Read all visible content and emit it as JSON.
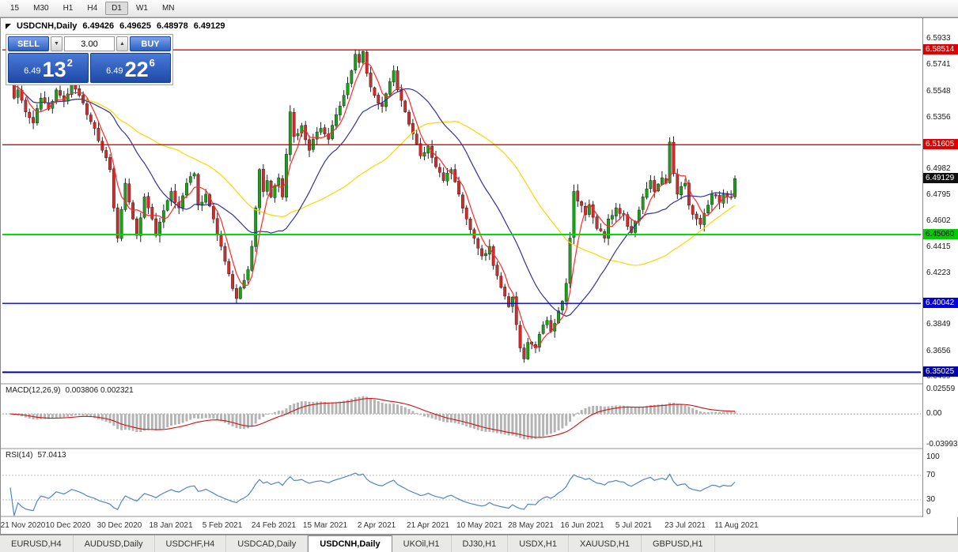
{
  "toolbar": {
    "timeframes": [
      {
        "label": "15",
        "active": false
      },
      {
        "label": "M30",
        "active": false
      },
      {
        "label": "H1",
        "active": false
      },
      {
        "label": "H4",
        "active": false
      },
      {
        "label": "D1",
        "active": true
      },
      {
        "label": "W1",
        "active": false
      },
      {
        "label": "MN",
        "active": false
      }
    ]
  },
  "chart": {
    "symbol_title": "USDCNH,Daily",
    "open": "6.49426",
    "high": "6.49625",
    "low": "6.48978",
    "close": "6.49129"
  },
  "trade_panel": {
    "sell_label": "SELL",
    "buy_label": "BUY",
    "volume": "3.00",
    "volume_down_glyph": "▼",
    "volume_up_glyph": "▲",
    "sell": {
      "base": "6.49",
      "pips": "13",
      "frac": "2"
    },
    "buy": {
      "base": "6.49",
      "pips": "22",
      "frac": "6"
    }
  },
  "price_axis": {
    "labels": [
      {
        "text": "6.5933",
        "price": 6.5933
      },
      {
        "text": "6.5741",
        "price": 6.5741
      },
      {
        "text": "6.5548",
        "price": 6.5548
      },
      {
        "text": "6.5356",
        "price": 6.5356
      },
      {
        "text": "6.4982",
        "price": 6.4982
      },
      {
        "text": "6.4795",
        "price": 6.4795
      },
      {
        "text": "6.4602",
        "price": 6.4602
      },
      {
        "text": "6.4415",
        "price": 6.4415
      },
      {
        "text": "6.4223",
        "price": 6.4223
      },
      {
        "text": "6.3849",
        "price": 6.3849
      },
      {
        "text": "6.3656",
        "price": 6.3656
      },
      {
        "text": "6.3469",
        "price": 6.3469
      }
    ],
    "badges": [
      {
        "text": "6.58514",
        "price": 6.58514,
        "bg": "#e00000",
        "fg": "#ffffff"
      },
      {
        "text": "6.51605",
        "price": 6.51605,
        "bg": "#e00000",
        "fg": "#ffffff"
      },
      {
        "text": "6.49129",
        "price": 6.49129,
        "bg": "#101010",
        "fg": "#ffffff"
      },
      {
        "text": "6.45060",
        "price": 6.4506,
        "bg": "#00ce00",
        "fg": "#000000"
      },
      {
        "text": "6.40042",
        "price": 6.40042,
        "bg": "#0000e0",
        "fg": "#ffffff"
      },
      {
        "text": "6.35025",
        "price": 6.35025,
        "bg": "#0000a8",
        "fg": "#ffffff"
      }
    ]
  },
  "chart_data": {
    "type": "candlestick",
    "symbol": "USDCNH",
    "timeframe": "Daily",
    "bars": 190,
    "y_range": [
      6.343,
      6.5985
    ],
    "last_close": 6.49129,
    "price_anchors": [
      [
        0,
        6.568
      ],
      [
        1,
        6.55
      ],
      [
        2,
        6.556
      ],
      [
        4,
        6.54
      ],
      [
        6,
        6.532
      ],
      [
        8,
        6.55
      ],
      [
        10,
        6.542
      ],
      [
        12,
        6.556
      ],
      [
        14,
        6.548
      ],
      [
        16,
        6.56
      ],
      [
        18,
        6.552
      ],
      [
        20,
        6.538
      ],
      [
        22,
        6.528
      ],
      [
        24,
        6.512
      ],
      [
        26,
        6.498
      ],
      [
        27,
        6.47
      ],
      [
        28,
        6.448
      ],
      [
        30,
        6.488
      ],
      [
        32,
        6.462
      ],
      [
        33,
        6.45
      ],
      [
        35,
        6.478
      ],
      [
        37,
        6.462
      ],
      [
        38,
        6.45
      ],
      [
        40,
        6.468
      ],
      [
        42,
        6.482
      ],
      [
        44,
        6.47
      ],
      [
        46,
        6.488
      ],
      [
        48,
        6.495
      ],
      [
        49,
        6.472
      ],
      [
        51,
        6.48
      ],
      [
        53,
        6.462
      ],
      [
        55,
        6.442
      ],
      [
        57,
        6.422
      ],
      [
        59,
        6.404
      ],
      [
        60,
        6.412
      ],
      [
        62,
        6.425
      ],
      [
        63,
        6.442
      ],
      [
        64,
        6.47
      ],
      [
        65,
        6.498
      ],
      [
        66,
        6.482
      ],
      [
        67,
        6.49
      ],
      [
        68,
        6.478
      ],
      [
        70,
        6.492
      ],
      [
        71,
        6.478
      ],
      [
        73,
        6.54
      ],
      [
        74,
        6.522
      ],
      [
        76,
        6.53
      ],
      [
        78,
        6.512
      ],
      [
        79,
        6.52
      ],
      [
        81,
        6.528
      ],
      [
        83,
        6.52
      ],
      [
        85,
        6.538
      ],
      [
        87,
        6.552
      ],
      [
        89,
        6.57
      ],
      [
        90,
        6.582
      ],
      [
        91,
        6.576
      ],
      [
        92,
        6.584
      ],
      [
        93,
        6.568
      ],
      [
        95,
        6.552
      ],
      [
        97,
        6.544
      ],
      [
        99,
        6.562
      ],
      [
        100,
        6.57
      ],
      [
        101,
        6.556
      ],
      [
        103,
        6.54
      ],
      [
        105,
        6.524
      ],
      [
        107,
        6.508
      ],
      [
        109,
        6.515
      ],
      [
        111,
        6.5
      ],
      [
        113,
        6.49
      ],
      [
        115,
        6.498
      ],
      [
        117,
        6.48
      ],
      [
        119,
        6.462
      ],
      [
        121,
        6.448
      ],
      [
        123,
        6.435
      ],
      [
        125,
        6.442
      ],
      [
        126,
        6.428
      ],
      [
        128,
        6.412
      ],
      [
        130,
        6.398
      ],
      [
        131,
        6.405
      ],
      [
        132,
        6.385
      ],
      [
        133,
        6.368
      ],
      [
        134,
        6.36
      ],
      [
        135,
        6.372
      ],
      [
        137,
        6.368
      ],
      [
        138,
        6.378
      ],
      [
        140,
        6.388
      ],
      [
        141,
        6.38
      ],
      [
        143,
        6.395
      ],
      [
        144,
        6.402
      ],
      [
        145,
        6.415
      ],
      [
        146,
        6.448
      ],
      [
        147,
        6.482
      ],
      [
        148,
        6.475
      ],
      [
        150,
        6.465
      ],
      [
        151,
        6.472
      ],
      [
        153,
        6.455
      ],
      [
        155,
        6.448
      ],
      [
        156,
        6.462
      ],
      [
        158,
        6.47
      ],
      [
        160,
        6.465
      ],
      [
        162,
        6.452
      ],
      [
        163,
        6.46
      ],
      [
        165,
        6.478
      ],
      [
        167,
        6.49
      ],
      [
        168,
        6.482
      ],
      [
        170,
        6.492
      ],
      [
        171,
        6.488
      ],
      [
        172,
        6.518
      ],
      [
        173,
        6.495
      ],
      [
        174,
        6.48
      ],
      [
        176,
        6.488
      ],
      [
        177,
        6.472
      ],
      [
        179,
        6.462
      ],
      [
        180,
        6.458
      ],
      [
        182,
        6.472
      ],
      [
        183,
        6.48
      ],
      [
        185,
        6.474
      ],
      [
        186,
        6.48
      ],
      [
        188,
        6.478
      ],
      [
        189,
        6.4913
      ]
    ],
    "levels": [
      {
        "price": 6.58514,
        "color": "#e80000",
        "width": 1.4
      },
      {
        "price": 6.51605,
        "color": "#e80000",
        "width": 1.4
      },
      {
        "price": 6.4506,
        "color": "#00dd00",
        "width": 2
      },
      {
        "price": 6.40042,
        "color": "#0000e8",
        "width": 1.4
      },
      {
        "price": 6.35025,
        "color": "#0000b0",
        "width": 2
      }
    ],
    "moving_averages": [
      {
        "period": 5,
        "color": "#ff2a2a"
      },
      {
        "period": 20,
        "color": "#31319d"
      },
      {
        "period": 45,
        "color": "#ffd400"
      }
    ],
    "candle_colors": {
      "up": "#19a119",
      "down": "#d42a2a",
      "wick": "#202020"
    },
    "macd": {
      "label": "MACD(12,26,9)",
      "values": "0.003806 0.002321",
      "fast": 12,
      "slow": 26,
      "signal": 9,
      "axis_max": "0.02559",
      "axis_zero": "0.00",
      "axis_min": "-0.03993",
      "hist_color": "#b4b4b4",
      "signal_color": "#cc1111"
    },
    "rsi": {
      "label": "RSI(14)",
      "value": "57.0413",
      "period": 14,
      "levels": [
        "100",
        "70",
        "30",
        "0"
      ],
      "color": "#4f86c6"
    }
  },
  "date_axis": [
    "21 Nov 2020",
    "10 Dec 2020",
    "30 Dec 2020",
    "18 Jan 2021",
    "5 Feb 2021",
    "24 Feb 2021",
    "15 Mar 2021",
    "2 Apr 2021",
    "21 Apr 2021",
    "10 May 2021",
    "28 May 2021",
    "16 Jun 2021",
    "5 Jul 2021",
    "23 Jul 2021",
    "11 Aug 2021"
  ],
  "tabs": [
    {
      "label": "EURUSD,H4",
      "active": false
    },
    {
      "label": "AUDUSD,Daily",
      "active": false
    },
    {
      "label": "USDCHF,H4",
      "active": false
    },
    {
      "label": "USDCAD,Daily",
      "active": false
    },
    {
      "label": "USDCNH,Daily",
      "active": true
    },
    {
      "label": "UKOil,H1",
      "active": false
    },
    {
      "label": "DJ30,H1",
      "active": false
    },
    {
      "label": "USDX,H1",
      "active": false
    },
    {
      "label": "XAUUSD,H1",
      "active": false
    },
    {
      "label": "GBPUSD,H1",
      "active": false
    }
  ]
}
